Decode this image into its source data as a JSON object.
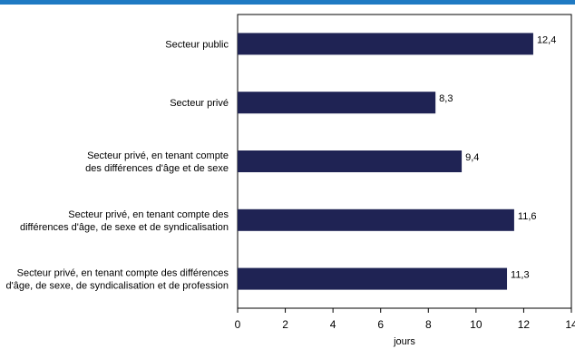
{
  "chart_data": {
    "type": "bar",
    "orientation": "horizontal",
    "categories": [
      [
        "Secteur public"
      ],
      [
        "Secteur privé"
      ],
      [
        "Secteur privé, en tenant compte",
        "des différences d'âge et de sexe"
      ],
      [
        "Secteur privé, en tenant compte des",
        "différences d'âge, de sexe et de syndicalisation"
      ],
      [
        "Secteur privé, en tenant compte des différences",
        "d'âge, de sexe, de syndicalisation et de profession"
      ]
    ],
    "values": [
      12.4,
      8.3,
      9.4,
      11.6,
      11.3
    ],
    "value_labels": [
      "12,4",
      "8,3",
      "9,4",
      "11,6",
      "11,3"
    ],
    "xlabel": "jours",
    "xlim": [
      0,
      14
    ],
    "xticks": [
      0,
      2,
      4,
      6,
      8,
      10,
      12,
      14
    ],
    "grid": false,
    "colors": {
      "bar": "#1f2354",
      "top_rule": "#1f7ac3",
      "axis": "#000000"
    }
  }
}
